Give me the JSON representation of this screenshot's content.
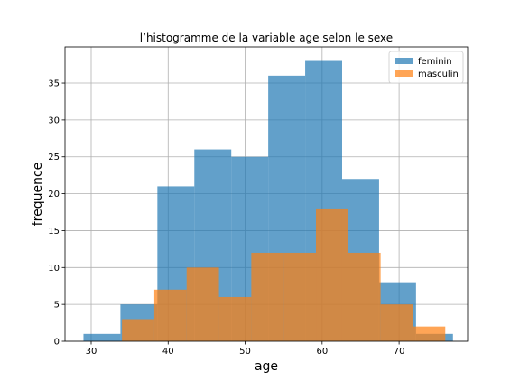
{
  "chart_data": {
    "type": "bar",
    "title": "l’histogramme de la variable age selon le sexe",
    "xlabel": "age",
    "ylabel": "frequence",
    "xlim": [
      26.6,
      78.9
    ],
    "ylim": [
      0,
      39.9
    ],
    "xticks": [
      30,
      40,
      50,
      60,
      70
    ],
    "yticks": [
      0,
      5,
      10,
      15,
      20,
      25,
      30,
      35
    ],
    "grid": true,
    "legend_position": "top-right",
    "series": [
      {
        "name": "feminin",
        "color": "#1f77b4",
        "opacity": 0.7,
        "bin_edges": [
          29,
          33.8,
          38.6,
          43.4,
          48.2,
          53.0,
          57.8,
          62.6,
          67.4,
          72.2,
          77.0
        ],
        "counts": [
          1,
          5,
          21,
          26,
          25,
          36,
          38,
          22,
          8,
          1
        ]
      },
      {
        "name": "masculin",
        "color": "#ff7f0e",
        "opacity": 0.7,
        "bin_edges": [
          34,
          38.2,
          42.4,
          46.6,
          50.8,
          55.0,
          59.2,
          63.4,
          67.6,
          71.8,
          76.0
        ],
        "counts": [
          3,
          7,
          10,
          6,
          12,
          12,
          18,
          12,
          5,
          2
        ]
      }
    ]
  }
}
